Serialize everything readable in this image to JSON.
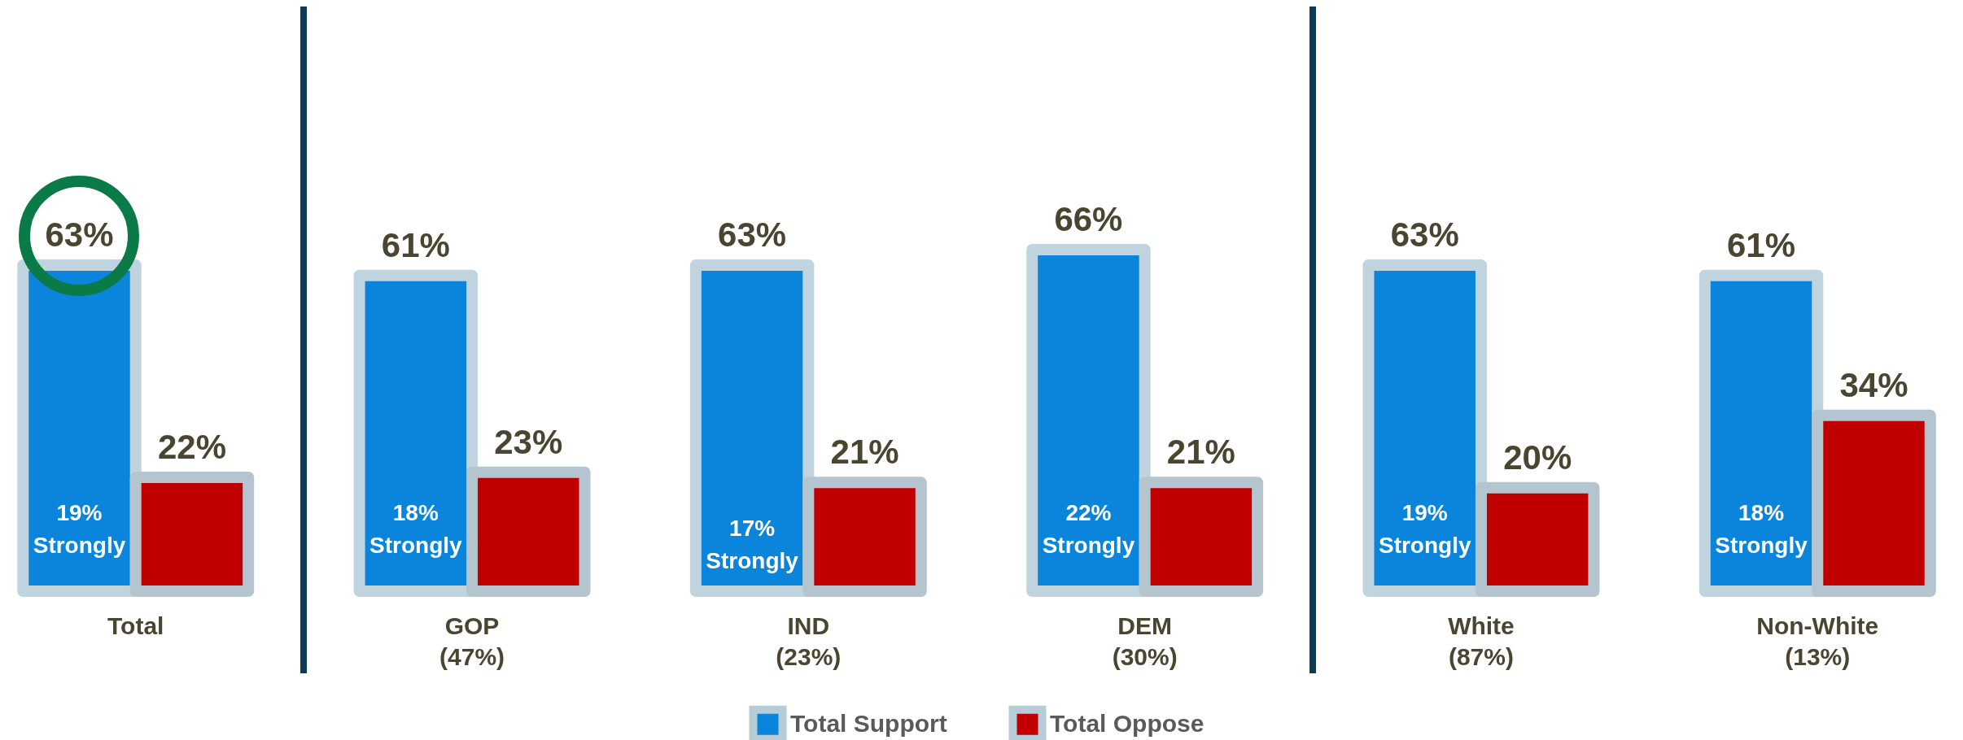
{
  "chart_data": {
    "type": "bar",
    "categories": [
      "Total",
      "GOP\n(47%)",
      "IND\n(23%)",
      "DEM\n(30%)",
      "White\n(87%)",
      "Non-White\n(13%)"
    ],
    "series": [
      {
        "name": "Total Support",
        "color": "#0b84dc",
        "values": [
          63,
          61,
          63,
          66,
          63,
          61
        ],
        "value_labels": [
          "63%",
          "61%",
          "63%",
          "66%",
          "63%",
          "61%"
        ]
      },
      {
        "name": "Total Oppose",
        "color": "#c00000",
        "values": [
          22,
          23,
          21,
          21,
          20,
          34
        ],
        "value_labels": [
          "22%",
          "23%",
          "21%",
          "21%",
          "20%",
          "34%"
        ]
      }
    ],
    "annotations": [
      {
        "text": "19%\nStrongly",
        "x": "Total",
        "y": 15
      },
      {
        "text": "18%\nStrongly",
        "x": "GOP\n(47%)",
        "y": 15
      },
      {
        "text": "17%\nStrongly",
        "x": "IND\n(23%)",
        "y": 12
      },
      {
        "text": "22%\nStrongly",
        "x": "DEM\n(30%)",
        "y": 15
      },
      {
        "text": "19%\nStrongly",
        "x": "White\n(87%)",
        "y": 15
      },
      {
        "text": "18%\nStrongly",
        "x": "Non-White\n(13%)",
        "y": 15
      }
    ],
    "legend": "bottom"
  }
}
